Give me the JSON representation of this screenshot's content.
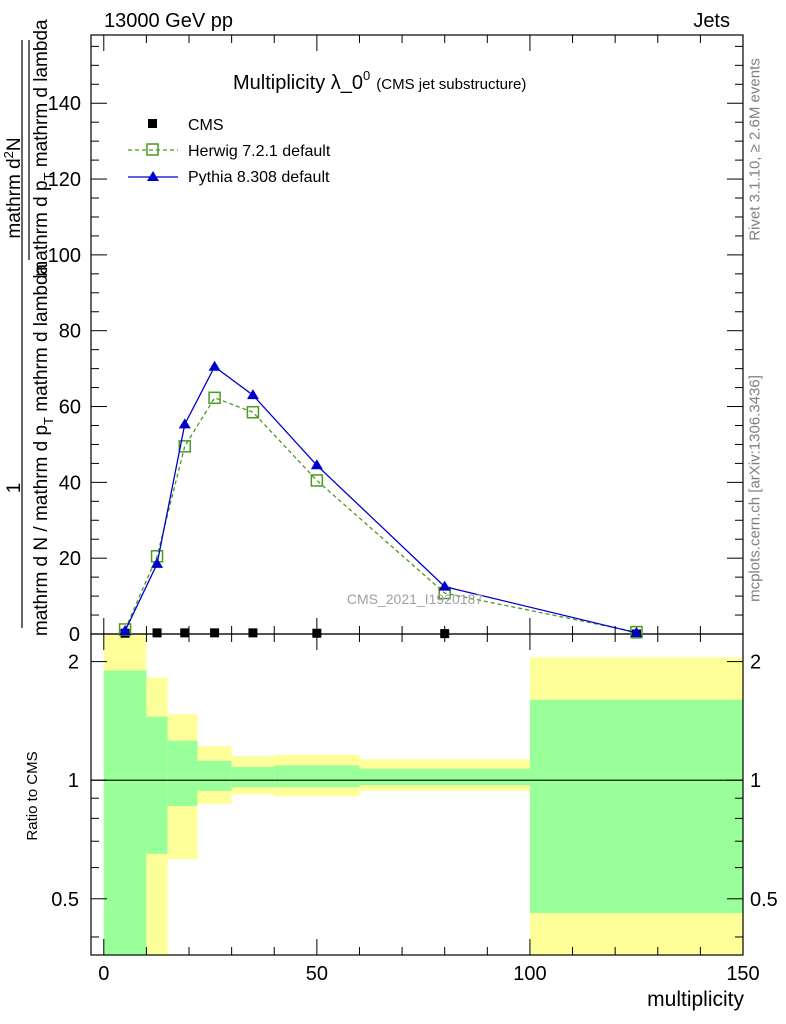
{
  "header": {
    "left": "13000 GeV pp",
    "right": "Jets"
  },
  "side_labels": {
    "rivet": "Rivet 3.1.10, ≥ 2.6M events",
    "mcplots": "mcplots.cern.ch [arXiv:1306.3436]"
  },
  "chart_data": [
    {
      "type": "line",
      "title": "Multiplicity λ_0",
      "title_superscript": "0",
      "subtitle": "(CMS jet substructure)",
      "ylabel_fraction_numerator": "1",
      "ylabel_main": "mathrm d N / mathrm d p",
      "ylabel_main_sub": "T",
      "ylabel_main_tail": " mathrm d lambda",
      "ylabel_right_numerator": "mathrm d",
      "ylabel_right_numerator_sup": "2",
      "ylabel_right_numerator_tail": "N",
      "ylabel_right_denominator": "mathrm d p",
      "ylabel_right_denominator_sub": "T",
      "ylabel_right_denominator_tail": " mathrm d lambda",
      "watermark": "CMS_2021_I1920187",
      "xlim": [
        -3,
        150
      ],
      "ylim": [
        0,
        158
      ],
      "yticks": [
        20,
        40,
        60,
        80,
        100,
        120,
        140
      ],
      "ytick_labels": [
        "20",
        "40",
        "60",
        "80",
        "100",
        "120",
        "140"
      ],
      "zero_label": "0",
      "legend_position": "top-left",
      "series": [
        {
          "name": "CMS",
          "marker": "filled-square",
          "color": "#000000",
          "x": [
            5,
            12.5,
            19,
            26,
            35,
            50,
            80,
            125
          ],
          "y": [
            0.2,
            0.3,
            0.3,
            0.3,
            0.3,
            0.2,
            0.1,
            0.0
          ]
        },
        {
          "name": "Herwig 7.2.1 default",
          "marker": "open-square",
          "line": "dashed",
          "color": "#4a9a1e",
          "x": [
            5,
            12.5,
            19,
            26,
            35,
            50,
            80,
            125
          ],
          "y": [
            1.2,
            20.5,
            49.5,
            62.3,
            58.5,
            40.5,
            10.8,
            0.5
          ]
        },
        {
          "name": "Pythia 8.308 default",
          "marker": "filled-triangle",
          "line": "solid",
          "color": "#0000cc",
          "x": [
            5,
            12.5,
            19,
            26,
            35,
            50,
            80,
            125
          ],
          "y": [
            0.8,
            18.5,
            55.3,
            70.5,
            63,
            44.5,
            12.5,
            0.3
          ]
        }
      ]
    },
    {
      "type": "area",
      "ylabel": "Ratio to CMS",
      "xlabel": "multiplicity",
      "ylog": true,
      "ylim": [
        0.36,
        2.35
      ],
      "yticks": [
        0.5,
        1,
        2
      ],
      "ytick_labels": [
        "0.5",
        "1",
        "2"
      ],
      "xticks": [
        0,
        50,
        100,
        150
      ],
      "xtick_labels": [
        "0",
        "50",
        "100",
        "150"
      ],
      "reference_line": 1,
      "bands": [
        {
          "x0": 0,
          "x1": 10,
          "stat_lo": 0.0,
          "stat_hi": 1.9,
          "tot_lo": 0.0,
          "tot_hi": 3.0
        },
        {
          "x0": 10,
          "x1": 15,
          "stat_lo": 0.65,
          "stat_hi": 1.45,
          "tot_lo": 0.0,
          "tot_hi": 1.82
        },
        {
          "x0": 15,
          "x1": 22,
          "stat_lo": 0.86,
          "stat_hi": 1.26,
          "tot_lo": 0.63,
          "tot_hi": 1.47
        },
        {
          "x0": 22,
          "x1": 30,
          "stat_lo": 0.94,
          "stat_hi": 1.12,
          "tot_lo": 0.87,
          "tot_hi": 1.22
        },
        {
          "x0": 30,
          "x1": 40,
          "stat_lo": 0.96,
          "stat_hi": 1.08,
          "tot_lo": 0.92,
          "tot_hi": 1.15
        },
        {
          "x0": 40,
          "x1": 60,
          "stat_lo": 0.96,
          "stat_hi": 1.09,
          "tot_lo": 0.91,
          "tot_hi": 1.16
        },
        {
          "x0": 60,
          "x1": 100,
          "stat_lo": 0.97,
          "stat_hi": 1.07,
          "tot_lo": 0.94,
          "tot_hi": 1.13
        },
        {
          "x0": 100,
          "x1": 150,
          "stat_lo": 0.46,
          "stat_hi": 1.6,
          "tot_lo": 0.0,
          "tot_hi": 2.05
        }
      ],
      "colors": {
        "stat": "#99ff99",
        "total": "#ffff99"
      }
    }
  ]
}
